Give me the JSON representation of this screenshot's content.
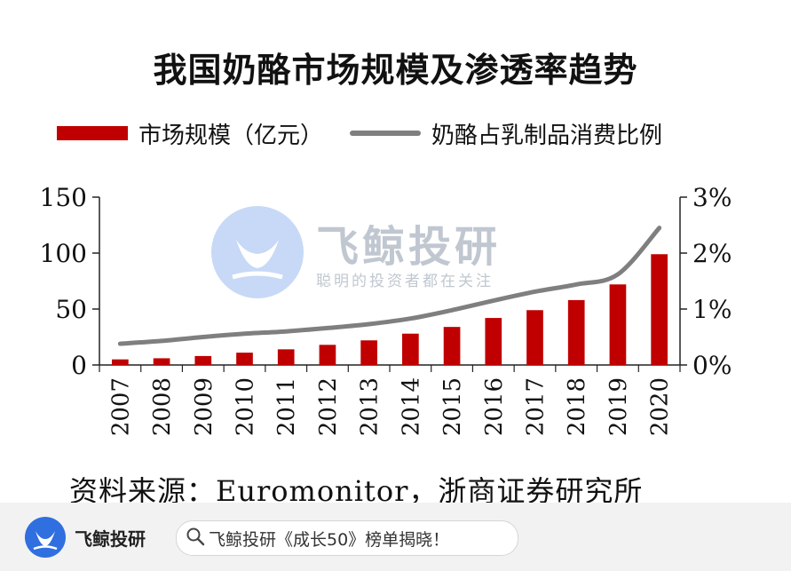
{
  "chart_data": {
    "type": "bar",
    "title": "我国奶酪市场规模及渗透率趋势",
    "categories": [
      "2007",
      "2008",
      "2009",
      "2010",
      "2011",
      "2012",
      "2013",
      "2014",
      "2015",
      "2016",
      "2017",
      "2018",
      "2019",
      "2020"
    ],
    "series": [
      {
        "name": "市场规模（亿元）",
        "type": "bar",
        "axis": "left",
        "color": "#c00000",
        "values": [
          5,
          6,
          8,
          11,
          14,
          18,
          22,
          28,
          34,
          42,
          49,
          58,
          72,
          99
        ]
      },
      {
        "name": "奶酪占乳制品消费比例",
        "type": "line",
        "axis": "right",
        "color": "#7f7f7f",
        "values": [
          0.38,
          0.43,
          0.5,
          0.56,
          0.6,
          0.66,
          0.73,
          0.83,
          0.98,
          1.15,
          1.31,
          1.44,
          1.62,
          2.45
        ]
      }
    ],
    "y_left": {
      "ylim": [
        0,
        150
      ],
      "ticks": [
        "0",
        "50",
        "100",
        "150"
      ]
    },
    "y_right": {
      "ylim": [
        0,
        3
      ],
      "ticks": [
        "0%",
        "1%",
        "2%",
        "3%"
      ]
    },
    "legend_position": "top",
    "grid": false
  },
  "source": "资料来源：Euromonitor，浙商证券研究所",
  "watermark": {
    "name": "飞鲸投研",
    "slogan": "聪明的投资者都在关注"
  },
  "footer": {
    "brand": "飞鲸投研",
    "search_text": "飞鲸投研《成长50》榜单揭晓！"
  },
  "colors": {
    "bar": "#c00000",
    "line": "#7f7f7f",
    "brand": "#2f6fe0"
  }
}
